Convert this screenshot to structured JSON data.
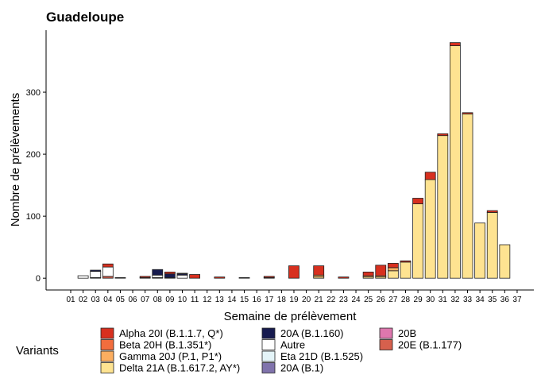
{
  "chart_data": {
    "type": "bar",
    "stacked": true,
    "title": "Guadeloupe",
    "x_label": "Semaine de prélèvement",
    "y_label": "Nombre de prélèvements",
    "legend_title": "Variants",
    "categories": [
      "01",
      "02",
      "03",
      "04",
      "05",
      "06",
      "07",
      "08",
      "09",
      "10",
      "11",
      "12",
      "13",
      "14",
      "15",
      "16",
      "17",
      "18",
      "19",
      "20",
      "21",
      "22",
      "23",
      "24",
      "25",
      "26",
      "27",
      "28",
      "29",
      "30",
      "31",
      "32",
      "33",
      "34",
      "35",
      "36",
      "37"
    ],
    "ylim": [
      -19,
      400
    ],
    "yticks": [
      0,
      100,
      200,
      300
    ],
    "grid": false,
    "series": [
      {
        "name": "Alpha 20I (B.1.1.7, Q*)",
        "color": "#d7301f",
        "values": [
          0,
          0,
          0,
          5,
          0,
          0,
          2,
          0,
          3,
          0,
          6,
          0,
          2,
          0,
          0,
          0,
          2,
          0,
          20,
          0,
          15,
          0,
          2,
          0,
          6,
          17,
          7,
          2,
          9,
          12,
          3,
          5,
          2,
          0,
          3,
          0,
          0
        ]
      },
      {
        "name": "Beta 20H (B.1.351*)",
        "color": "#f26d3d",
        "values": [
          0,
          0,
          0,
          0,
          0,
          0,
          0,
          0,
          0,
          1,
          0,
          0,
          0,
          0,
          0,
          0,
          0,
          0,
          0,
          0,
          0,
          0,
          0,
          0,
          0,
          0,
          0,
          0,
          0,
          0,
          0,
          0,
          0,
          0,
          0,
          0,
          0
        ]
      },
      {
        "name": "Gamma 20J (P.1, P1*)",
        "color": "#fcae60",
        "values": [
          0,
          0,
          0,
          0,
          0,
          0,
          0,
          0,
          0,
          0,
          0,
          0,
          0,
          0,
          0,
          0,
          1,
          0,
          0,
          0,
          3,
          0,
          0,
          0,
          2,
          2,
          5,
          0,
          0,
          0,
          0,
          0,
          0,
          0,
          0,
          0,
          0
        ]
      },
      {
        "name": "Delta 21A (B.1.617.2, AY*)",
        "color": "#fee391",
        "values": [
          0,
          0,
          0,
          0,
          0,
          0,
          0,
          0,
          0,
          0,
          0,
          0,
          0,
          0,
          0,
          0,
          0,
          0,
          0,
          0,
          2,
          0,
          0,
          0,
          2,
          2,
          12,
          26,
          120,
          159,
          230,
          375,
          265,
          89,
          106,
          54,
          0
        ]
      },
      {
        "name": "20A (B.1.160)",
        "color": "#171b4f",
        "values": [
          0,
          0,
          2,
          0,
          0,
          0,
          1,
          9,
          6,
          2,
          0,
          0,
          0,
          0,
          1,
          0,
          0,
          0,
          0,
          0,
          0,
          0,
          0,
          0,
          0,
          0,
          0,
          0,
          0,
          0,
          0,
          0,
          0,
          0,
          0,
          0,
          0
        ]
      },
      {
        "name": "Autre",
        "color": "#ffffff",
        "values": [
          0,
          4,
          10,
          15,
          1,
          0,
          0,
          4,
          1,
          5,
          0,
          0,
          0,
          0,
          0,
          0,
          0,
          0,
          0,
          0,
          0,
          0,
          0,
          0,
          0,
          0,
          0,
          0,
          0,
          0,
          0,
          0,
          0,
          0,
          0,
          0,
          0
        ]
      },
      {
        "name": "Eta 21D (B.1.525)",
        "color": "#e4f4f8",
        "values": [
          0,
          0,
          0,
          0,
          0,
          0,
          0,
          0,
          0,
          0,
          0,
          0,
          0,
          0,
          0,
          0,
          0,
          0,
          0,
          0,
          0,
          0,
          0,
          0,
          0,
          0,
          0,
          0,
          0,
          0,
          0,
          0,
          0,
          0,
          0,
          0,
          0
        ]
      },
      {
        "name": "20A (B.1)",
        "color": "#8073ac",
        "values": [
          0,
          0,
          0,
          0,
          0,
          0,
          0,
          0,
          0,
          0,
          0,
          0,
          0,
          0,
          0,
          0,
          0,
          0,
          0,
          0,
          0,
          0,
          0,
          0,
          0,
          0,
          0,
          0,
          0,
          0,
          0,
          0,
          0,
          0,
          0,
          0,
          0
        ]
      },
      {
        "name": "20B",
        "color": "#de77ae",
        "values": [
          0,
          0,
          0,
          0,
          0,
          0,
          0,
          0,
          0,
          0,
          0,
          0,
          0,
          0,
          0,
          0,
          0,
          0,
          0,
          0,
          0,
          0,
          0,
          0,
          0,
          0,
          0,
          0,
          0,
          0,
          0,
          0,
          0,
          0,
          0,
          0,
          0
        ]
      },
      {
        "name": "20E (B.1.177)",
        "color": "#d6604d",
        "values": [
          0,
          0,
          1,
          3,
          0,
          0,
          0,
          1,
          0,
          0,
          0,
          0,
          0,
          0,
          0,
          0,
          0,
          0,
          0,
          0,
          0,
          0,
          0,
          0,
          0,
          0,
          0,
          0,
          0,
          0,
          0,
          0,
          0,
          0,
          0,
          0,
          0
        ]
      }
    ]
  }
}
